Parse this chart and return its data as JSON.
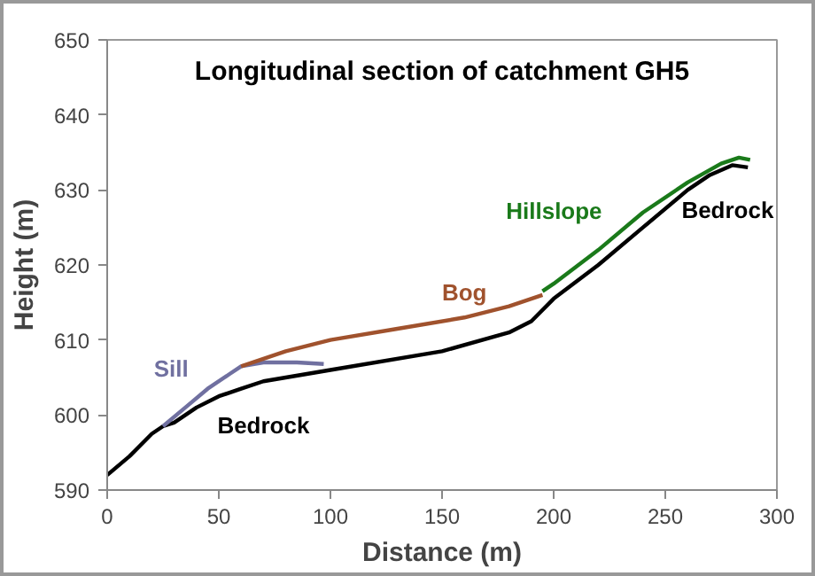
{
  "chart_data": {
    "type": "line",
    "title": "Longitudinal section of catchment GH5",
    "xlabel": "Distance (m)",
    "ylabel": "Height (m)",
    "xlim": [
      0,
      300
    ],
    "xticks": [
      0,
      50,
      100,
      150,
      200,
      250,
      300
    ],
    "ylim": [
      590,
      650
    ],
    "yticks": [
      590,
      600,
      610,
      620,
      630,
      640,
      650
    ],
    "grid": false,
    "legend": false,
    "marker": "none",
    "line_style": "solid",
    "series": [
      {
        "name": "Bedrock",
        "color": "#000000",
        "x": [
          0,
          10,
          20,
          25,
          30,
          40,
          50,
          60,
          70,
          100,
          150,
          180,
          190,
          200,
          220,
          240,
          260,
          270,
          280,
          287
        ],
        "values": [
          592,
          594.5,
          597.5,
          598.5,
          599,
          601,
          602.5,
          603.5,
          604.5,
          606,
          608.5,
          611,
          612.5,
          615.5,
          620,
          625,
          630,
          632,
          633.3,
          633
        ]
      },
      {
        "name": "Sill",
        "color": "#7070a0",
        "x": [
          25,
          35,
          45,
          55,
          60,
          70,
          85,
          97
        ],
        "values": [
          598.5,
          601,
          603.5,
          605.5,
          606.5,
          607,
          607,
          606.8
        ]
      },
      {
        "name": "Bog",
        "color": "#a0522d",
        "x": [
          60,
          80,
          100,
          130,
          160,
          180,
          195
        ],
        "values": [
          606.5,
          608.5,
          610,
          611.5,
          613,
          614.5,
          616
        ]
      },
      {
        "name": "Hillslope",
        "color": "#1a7a1a",
        "x": [
          195,
          200,
          220,
          240,
          260,
          275,
          283,
          288
        ],
        "values": [
          616.5,
          617.5,
          622,
          627,
          631,
          633.5,
          634.3,
          634
        ]
      }
    ],
    "annotations": [
      "Bedrock"
    ]
  }
}
